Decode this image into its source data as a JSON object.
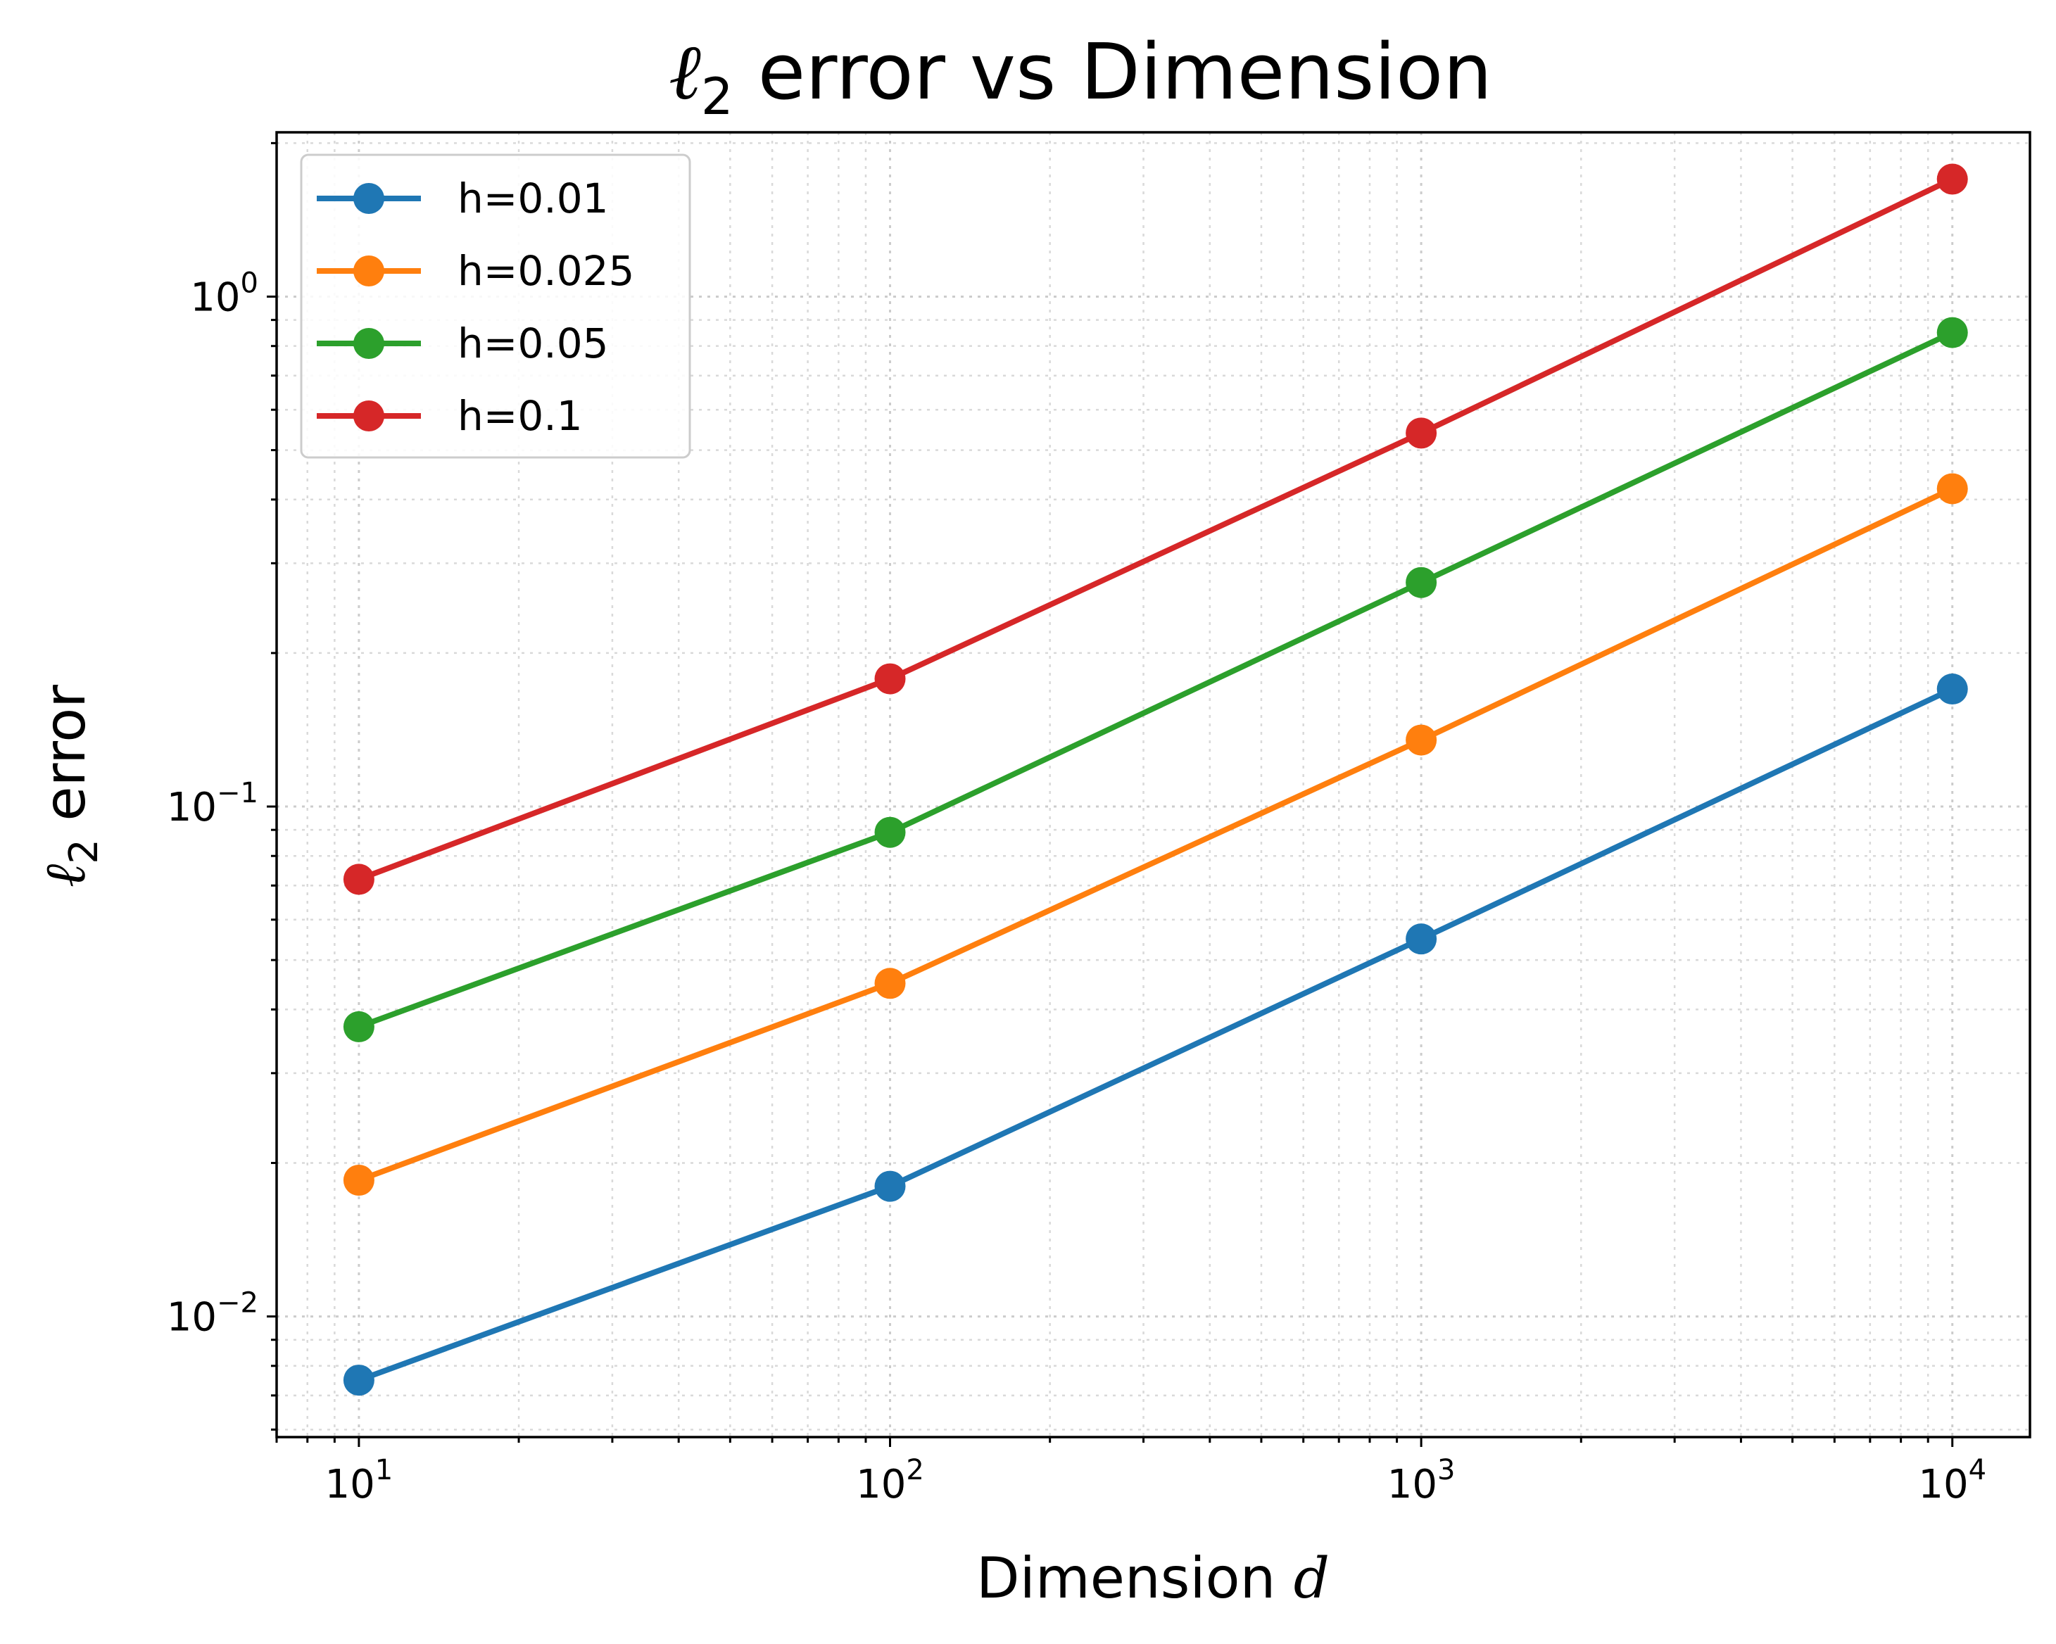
{
  "chart_data": {
    "type": "line",
    "title": "ℓ2 error vs Dimension",
    "title_parts": {
      "math": "ℓ",
      "sub": "2",
      "text": " error vs Dimension"
    },
    "xlabel": "Dimension d",
    "xlabel_parts": {
      "text": "Dimension ",
      "math": "d"
    },
    "ylabel": "ℓ2 error",
    "ylabel_parts": {
      "math": "ℓ",
      "sub": "2",
      "text": " error"
    },
    "x_scale": "log",
    "y_scale": "log",
    "x": [
      10,
      100,
      1000,
      10000
    ],
    "xlim": [
      7,
      14000
    ],
    "ylim": [
      0.0058,
      2.1
    ],
    "x_ticks": [
      {
        "value": 10,
        "base": "10",
        "exp": "1"
      },
      {
        "value": 100,
        "base": "10",
        "exp": "2"
      },
      {
        "value": 1000,
        "base": "10",
        "exp": "3"
      },
      {
        "value": 10000,
        "base": "10",
        "exp": "4"
      }
    ],
    "y_ticks": [
      {
        "value": 0.01,
        "base": "10",
        "exp": "−2"
      },
      {
        "value": 0.1,
        "base": "10",
        "exp": "−1"
      },
      {
        "value": 1,
        "base": "10",
        "exp": "0"
      }
    ],
    "grid": true,
    "legend_position": "top-left",
    "series": [
      {
        "name": "h=0.01",
        "color": "#1f77b4",
        "values": [
          0.0075,
          0.018,
          0.055,
          0.17
        ]
      },
      {
        "name": "h=0.025",
        "color": "#ff7f0e",
        "values": [
          0.0185,
          0.045,
          0.135,
          0.42
        ]
      },
      {
        "name": "h=0.05",
        "color": "#2ca02c",
        "values": [
          0.037,
          0.089,
          0.275,
          0.85
        ]
      },
      {
        "name": "h=0.1",
        "color": "#d62728",
        "values": [
          0.072,
          0.178,
          0.54,
          1.7
        ]
      }
    ]
  }
}
